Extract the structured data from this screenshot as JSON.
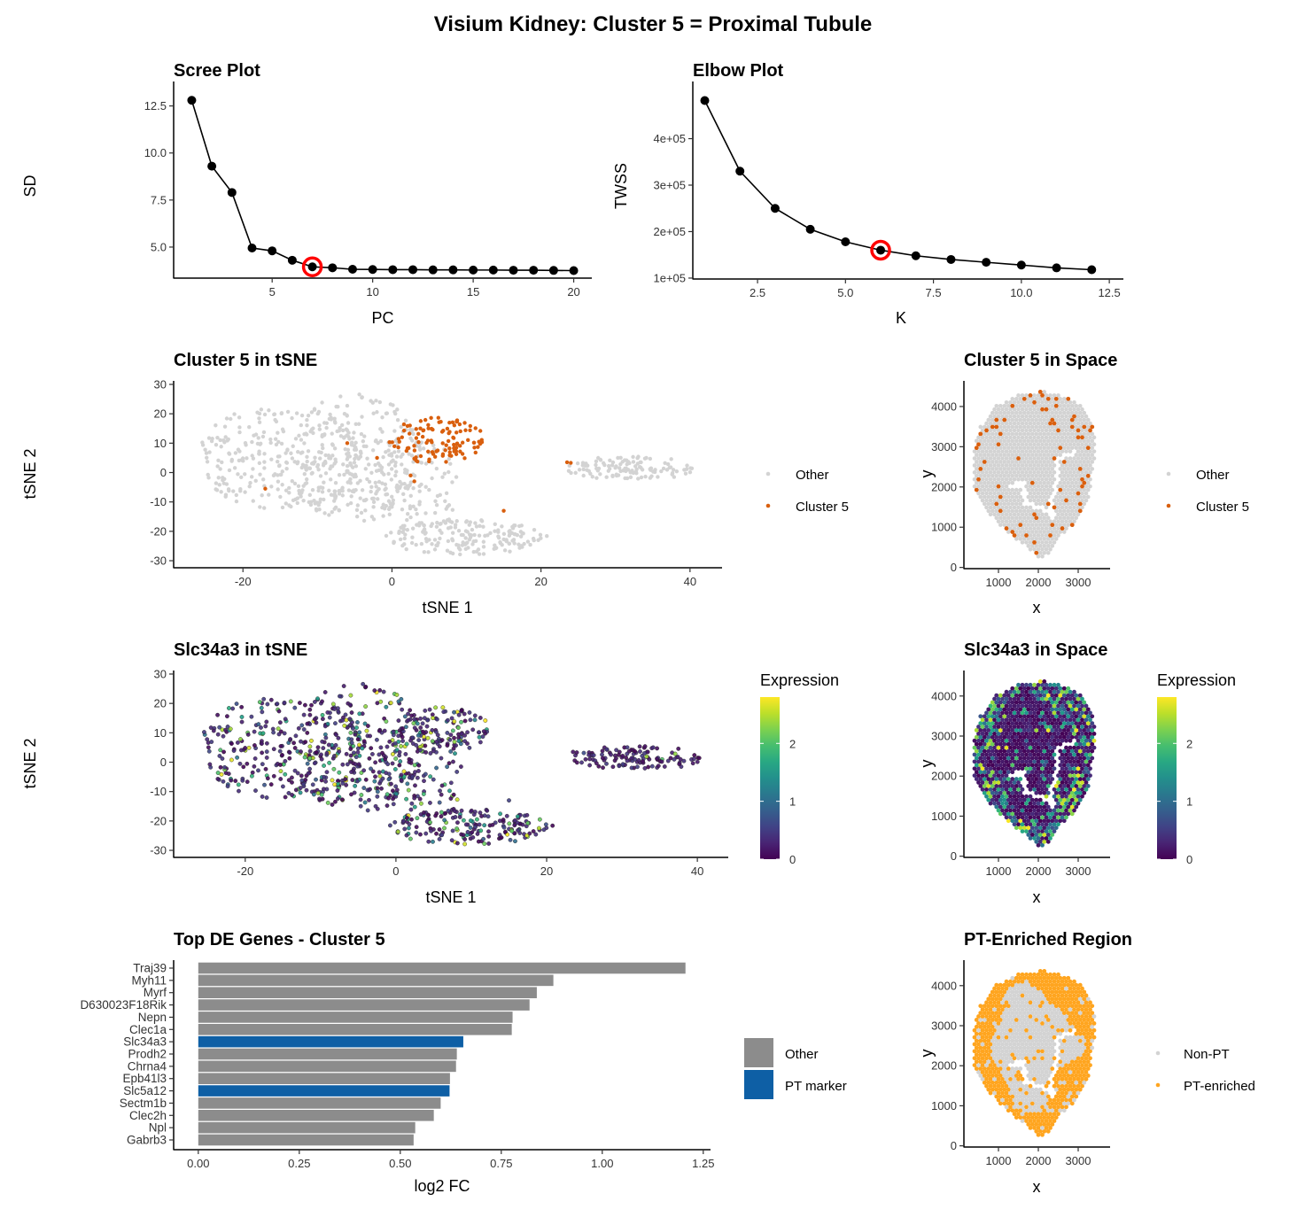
{
  "title": "Visium Kidney: Cluster 5 = Proximal Tubule",
  "chart_data": [
    {
      "id": "scree",
      "type": "line",
      "title": "Scree Plot",
      "xlabel": "PC",
      "ylabel": "SD",
      "x": [
        1,
        2,
        3,
        4,
        5,
        6,
        7,
        8,
        9,
        10,
        11,
        12,
        13,
        14,
        15,
        16,
        17,
        18,
        19,
        20
      ],
      "y": [
        12.8,
        9.3,
        7.9,
        4.95,
        4.8,
        4.3,
        3.95,
        3.9,
        3.82,
        3.81,
        3.8,
        3.8,
        3.79,
        3.79,
        3.78,
        3.78,
        3.77,
        3.77,
        3.76,
        3.75
      ],
      "highlight": {
        "x": 7,
        "y": 3.95,
        "color": "#FF0000"
      },
      "xlim": [
        0.1,
        20.9
      ],
      "ylim": [
        3.35,
        13.8
      ],
      "xticks": [
        5,
        10,
        15,
        20
      ],
      "xtick_labels": [
        "5",
        "10",
        "15",
        "20"
      ],
      "yticks": [
        5,
        7.5,
        10,
        12.5
      ],
      "ytick_labels": [
        "5.0",
        "7.5",
        "10.0",
        "12.5"
      ],
      "grid": false
    },
    {
      "id": "elbow",
      "type": "line",
      "title": "Elbow Plot",
      "xlabel": "K",
      "ylabel": "TWSS",
      "x": [
        1,
        2,
        3,
        4,
        5,
        6,
        7,
        8,
        9,
        10,
        11,
        12
      ],
      "y": [
        482000,
        330000,
        250000,
        205000,
        178000,
        160000,
        148000,
        140000,
        134000,
        128000,
        122000,
        118000
      ],
      "highlight": {
        "x": 6,
        "y": 160000,
        "color": "#FF0000"
      },
      "xlim": [
        0.66,
        12.9
      ],
      "ylim": [
        98000,
        523000
      ],
      "xticks": [
        2.5,
        5,
        7.5,
        10,
        12.5
      ],
      "xtick_labels": [
        "2.5",
        "5.0",
        "7.5",
        "10.0",
        "12.5"
      ],
      "yticks": [
        100000,
        200000,
        300000,
        400000
      ],
      "ytick_labels": [
        "1e+05",
        "2e+05",
        "3e+05",
        "4e+05"
      ],
      "grid": false
    },
    {
      "id": "cluster_tsne",
      "type": "scatter",
      "title": "Cluster 5 in tSNE",
      "xlabel": "tSNE 1",
      "ylabel": "tSNE 2",
      "xlim": [
        -29.3,
        44.3
      ],
      "ylim": [
        -32.4,
        31.2
      ],
      "xticks": [
        -20,
        0,
        20,
        40
      ],
      "xtick_labels": [
        "-20",
        "0",
        "20",
        "40"
      ],
      "yticks": [
        -30,
        -20,
        -10,
        0,
        10,
        20,
        30
      ],
      "ytick_labels": [
        "-30",
        "-20",
        "-10",
        "0",
        "10",
        "20",
        "30"
      ],
      "legend": [
        {
          "label": "Other",
          "color": "#D3D3D3"
        },
        {
          "label": "Cluster 5",
          "color": "#D95F0E"
        }
      ],
      "cluster5_outliers": [
        [
          -17,
          -5.5
        ],
        [
          -6,
          10
        ],
        [
          15,
          -13
        ],
        [
          23.5,
          3.5
        ],
        [
          24,
          3.3
        ],
        [
          3,
          -3
        ],
        [
          2.5,
          -1
        ],
        [
          -2,
          5
        ]
      ]
    },
    {
      "id": "cluster_space",
      "type": "scatter",
      "title": "Cluster 5 in Space",
      "xlabel": "x",
      "ylabel": "y",
      "xlim": [
        133,
        3800
      ],
      "ylim": [
        -30,
        4637
      ],
      "xticks": [
        1000,
        2000,
        3000
      ],
      "xtick_labels": [
        "1000",
        "2000",
        "3000"
      ],
      "yticks": [
        0,
        1000,
        2000,
        3000,
        4000
      ],
      "ytick_labels": [
        "0",
        "1000",
        "2000",
        "3000",
        "4000"
      ],
      "legend": [
        {
          "label": "Other",
          "color": "#D3D3D3"
        },
        {
          "label": "Cluster 5",
          "color": "#D95F0E"
        }
      ]
    },
    {
      "id": "gene_tsne",
      "type": "scatter",
      "title": "Slc34a3 in tSNE",
      "xlabel": "tSNE 1",
      "ylabel": "tSNE 2",
      "xlim": [
        -29.5,
        44.1
      ],
      "ylim": [
        -32.4,
        31.2
      ],
      "xticks": [
        -20,
        0,
        20,
        40
      ],
      "xtick_labels": [
        "-20",
        "0",
        "20",
        "40"
      ],
      "yticks": [
        -30,
        -20,
        -10,
        0,
        10,
        20,
        30
      ],
      "ytick_labels": [
        "-30",
        "-20",
        "-10",
        "0",
        "10",
        "20",
        "30"
      ],
      "colorbar": {
        "title": "Expression",
        "min": 0,
        "max": 2.8,
        "ticks": [
          0,
          1,
          2
        ],
        "tick_labels": [
          "0",
          "1",
          "2"
        ],
        "palette": "viridis"
      }
    },
    {
      "id": "gene_space",
      "type": "scatter",
      "title": "Slc34a3 in Space",
      "xlabel": "x",
      "ylabel": "y",
      "xlim": [
        133,
        3800
      ],
      "ylim": [
        -30,
        4637
      ],
      "xticks": [
        1000,
        2000,
        3000
      ],
      "xtick_labels": [
        "1000",
        "2000",
        "3000"
      ],
      "yticks": [
        0,
        1000,
        2000,
        3000,
        4000
      ],
      "ytick_labels": [
        "0",
        "1000",
        "2000",
        "3000",
        "4000"
      ],
      "colorbar": {
        "title": "Expression",
        "min": 0,
        "max": 2.8,
        "ticks": [
          0,
          1,
          2
        ],
        "tick_labels": [
          "0",
          "1",
          "2"
        ],
        "palette": "viridis"
      }
    },
    {
      "id": "de_genes",
      "type": "bar",
      "orientation": "horizontal",
      "title": "Top DE Genes - Cluster 5",
      "xlabel": "log2 FC",
      "ylabel": "",
      "categories": [
        "Traj39",
        "Myh11",
        "Myrf",
        "D630023F18Rik",
        "Nepn",
        "Clec1a",
        "Slc34a3",
        "Prodh2",
        "Chrna4",
        "Epb41l3",
        "Slc5a12",
        "Sectm1b",
        "Clec2h",
        "Npl",
        "Gabrb3"
      ],
      "values": [
        1.206,
        0.879,
        0.838,
        0.82,
        0.778,
        0.776,
        0.656,
        0.64,
        0.638,
        0.623,
        0.622,
        0.6,
        0.583,
        0.537,
        0.533
      ],
      "groups": [
        "Other",
        "Other",
        "Other",
        "Other",
        "Other",
        "Other",
        "PT marker",
        "Other",
        "Other",
        "Other",
        "PT marker",
        "Other",
        "Other",
        "Other",
        "Other"
      ],
      "xlim": [
        -0.061,
        1.268
      ],
      "xticks": [
        0,
        0.25,
        0.5,
        0.75,
        1,
        1.25
      ],
      "xtick_labels": [
        "0.00",
        "0.25",
        "0.50",
        "0.75",
        "1.00",
        "1.25"
      ],
      "legend": [
        {
          "label": "Other",
          "color": "#8C8C8C"
        },
        {
          "label": "PT marker",
          "color": "#0E5FA5"
        }
      ]
    },
    {
      "id": "pt_space",
      "type": "scatter",
      "title": "PT-Enriched Region",
      "xlabel": "x",
      "ylabel": "y",
      "xlim": [
        133,
        3800
      ],
      "ylim": [
        -30,
        4637
      ],
      "xticks": [
        1000,
        2000,
        3000
      ],
      "xtick_labels": [
        "1000",
        "2000",
        "3000"
      ],
      "yticks": [
        0,
        1000,
        2000,
        3000,
        4000
      ],
      "ytick_labels": [
        "0",
        "1000",
        "2000",
        "3000",
        "4000"
      ],
      "legend": [
        {
          "label": "Non-PT",
          "color": "#D3D3D3"
        },
        {
          "label": "PT-enriched",
          "color": "#FFA51F"
        }
      ]
    }
  ]
}
